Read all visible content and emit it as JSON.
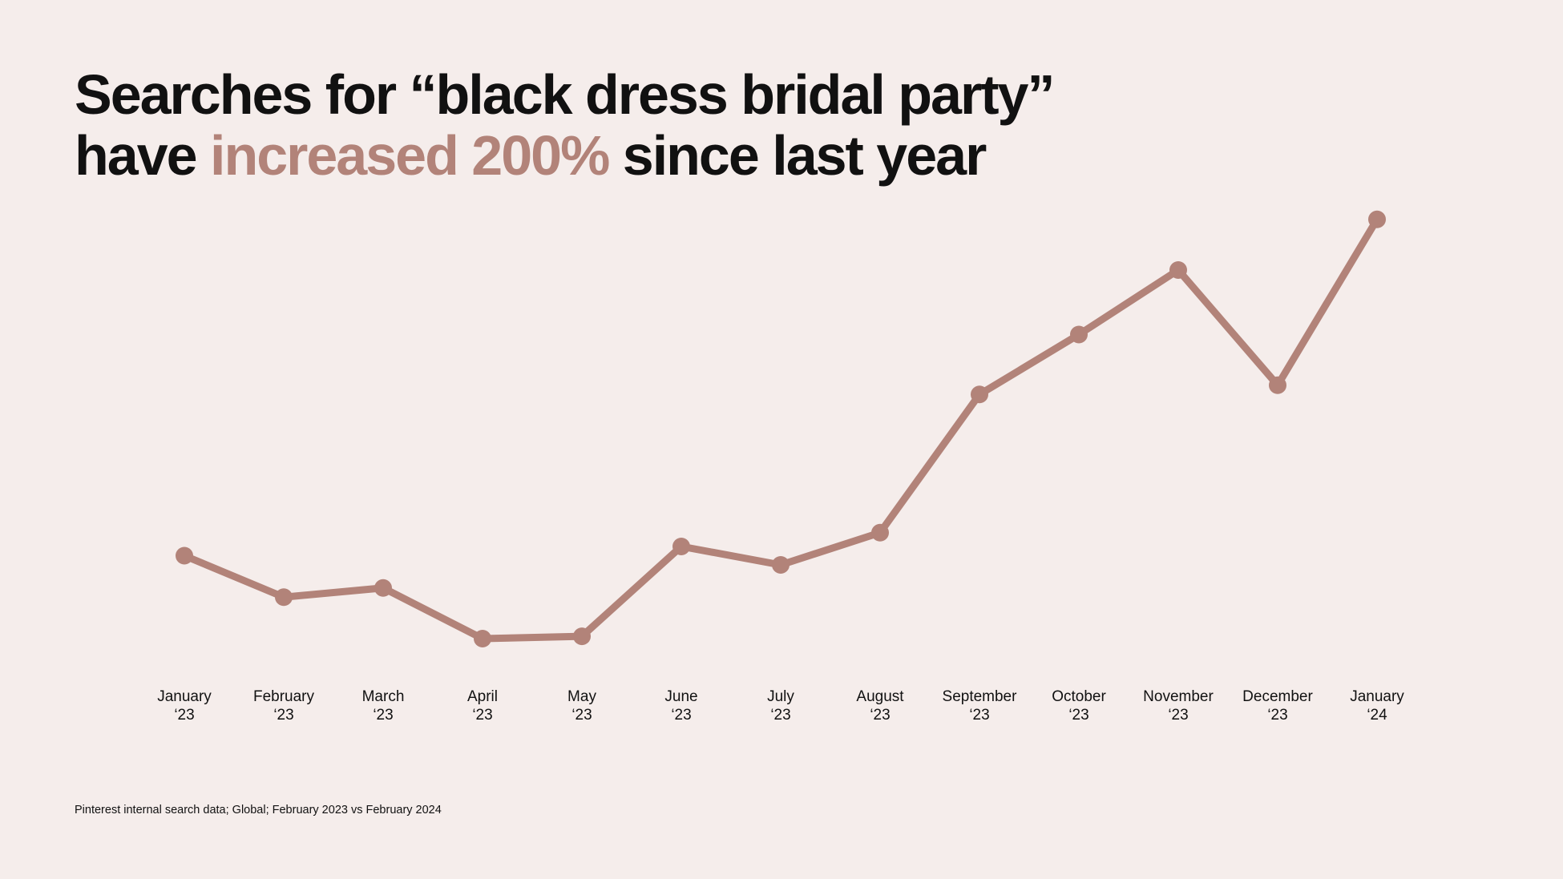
{
  "headline": {
    "line1": "Searches for “black dress bridal party”",
    "line2_prefix": "have ",
    "line2_accent": "increased 200%",
    "line2_suffix": " since last year"
  },
  "footnote": "Pinterest internal search data; Global; February 2023 vs February 2024",
  "colors": {
    "background": "#f5edeb",
    "text": "#111111",
    "accent": "#b28379",
    "line": "#b28379"
  },
  "chart_data": {
    "type": "line",
    "categories": [
      [
        "January",
        "‘23"
      ],
      [
        "February",
        "‘23"
      ],
      [
        "March",
        "‘23"
      ],
      [
        "April",
        "‘23"
      ],
      [
        "May",
        "‘23"
      ],
      [
        "June",
        "‘23"
      ],
      [
        "July",
        "‘23"
      ],
      [
        "August",
        "‘23"
      ],
      [
        "September",
        "‘23"
      ],
      [
        "October",
        "‘23"
      ],
      [
        "November",
        "‘23"
      ],
      [
        "December",
        "‘23"
      ],
      [
        "January",
        "‘24"
      ]
    ],
    "values": [
      22,
      13,
      15,
      4,
      4.5,
      24,
      20,
      27,
      57,
      70,
      84,
      59,
      95
    ],
    "ylim": [
      0,
      100
    ],
    "grid": false,
    "legend": "none",
    "y_axis_visible": false,
    "markers": true
  }
}
